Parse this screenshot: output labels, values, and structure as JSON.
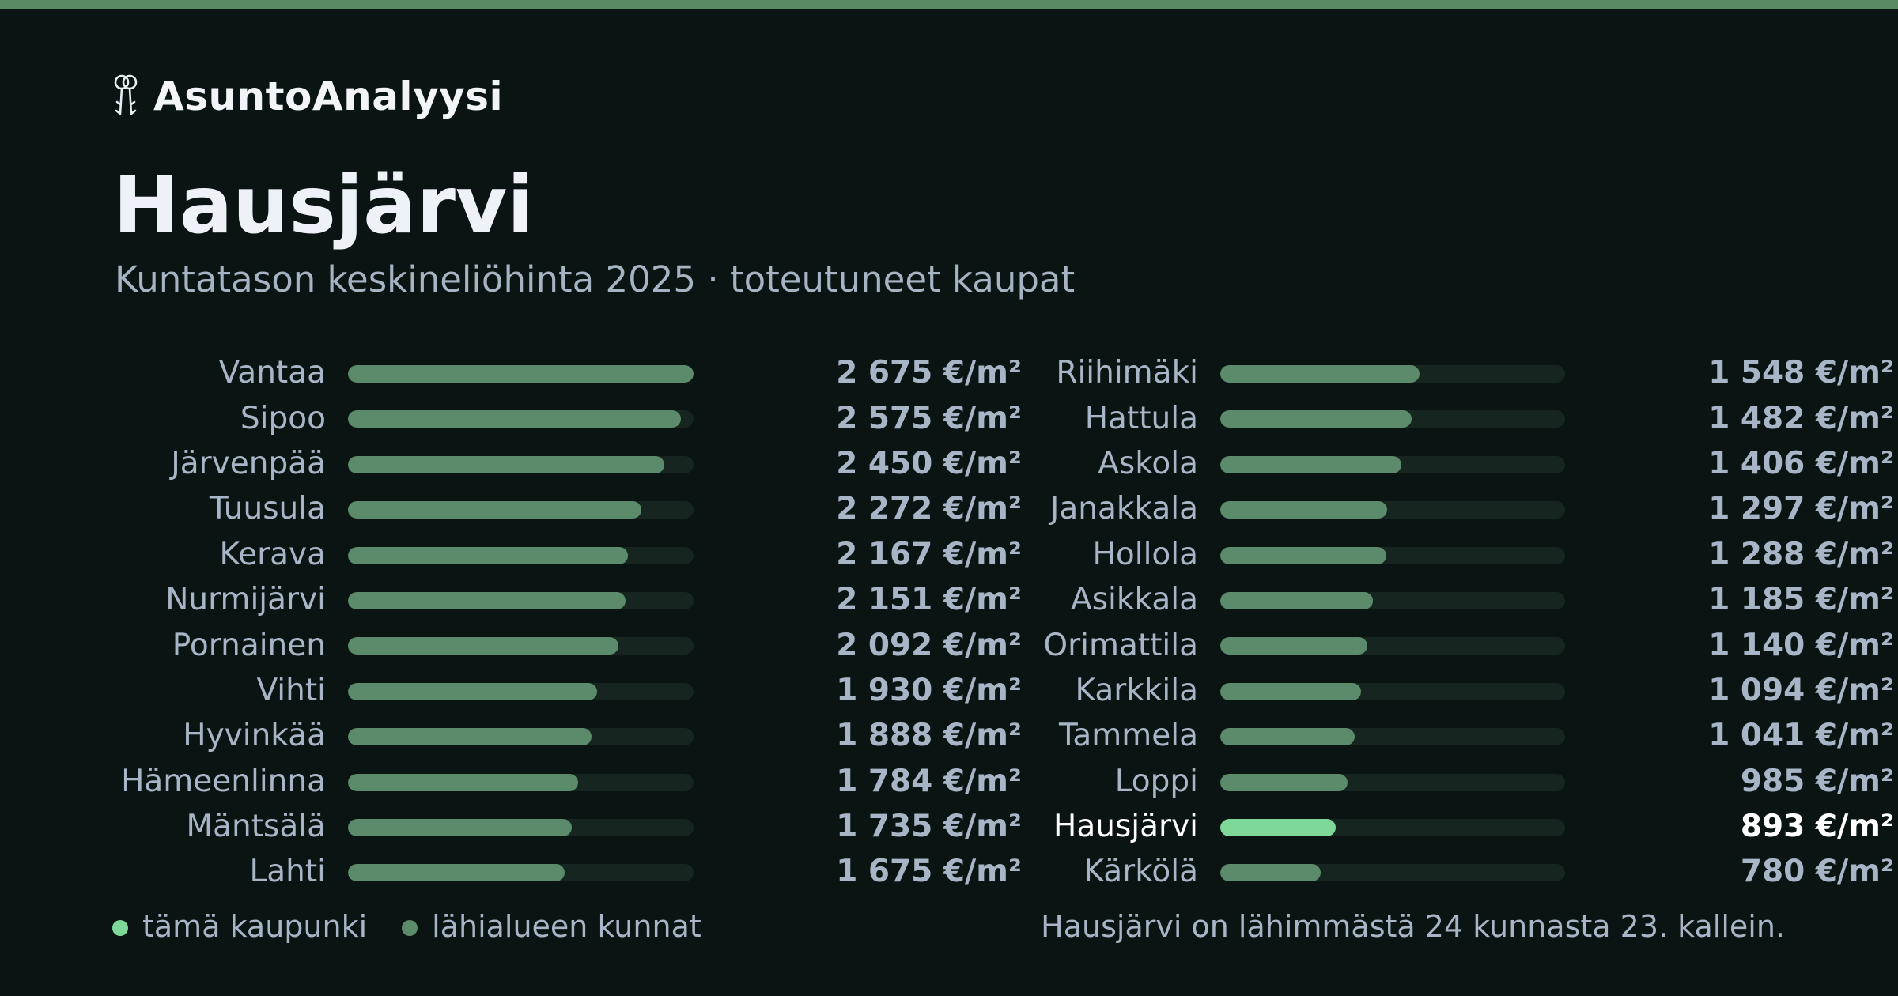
{
  "brand": {
    "name": "AsuntoAnalyysi",
    "logo_icon": "keys-icon"
  },
  "colors": {
    "accent_bar": "#5a8a63",
    "bar": "#5b8b6b",
    "highlight_bar": "#7dd89a",
    "legend_this": "#7dd89a",
    "legend_nearby": "#5b8b6b"
  },
  "chart_data": {
    "type": "bar",
    "orientation": "horizontal",
    "title": "Hausjärvi",
    "subtitle": "Kuntatason keskineliöhinta 2025 · toteutuneet kaupat",
    "unit": "€/m²",
    "xlim": [
      0,
      2675
    ],
    "highlight": "Hausjärvi",
    "categories": [
      "Vantaa",
      "Sipoo",
      "Järvenpää",
      "Tuusula",
      "Kerava",
      "Nurmijärvi",
      "Pornainen",
      "Vihti",
      "Hyvinkää",
      "Hämeenlinna",
      "Mäntsälä",
      "Lahti",
      "Riihimäki",
      "Hattula",
      "Askola",
      "Janakkala",
      "Hollola",
      "Asikkala",
      "Orimattila",
      "Karkkila",
      "Tammela",
      "Loppi",
      "Hausjärvi",
      "Kärkölä"
    ],
    "values": [
      2675,
      2575,
      2450,
      2272,
      2167,
      2151,
      2092,
      1930,
      1888,
      1784,
      1735,
      1675,
      1548,
      1482,
      1406,
      1297,
      1288,
      1185,
      1140,
      1094,
      1041,
      985,
      893,
      780
    ],
    "value_labels": [
      "2 675 €/m²",
      "2 575 €/m²",
      "2 450 €/m²",
      "2 272 €/m²",
      "2 167 €/m²",
      "2 151 €/m²",
      "2 092 €/m²",
      "1 930 €/m²",
      "1 888 €/m²",
      "1 784 €/m²",
      "1 735 €/m²",
      "1 675 €/m²",
      "1 548 €/m²",
      "1 482 €/m²",
      "1 406 €/m²",
      "1 297 €/m²",
      "1 288 €/m²",
      "1 185 €/m²",
      "1 140 €/m²",
      "1 094 €/m²",
      "1 041 €/m²",
      "985 €/m²",
      "893 €/m²",
      "780 €/m²"
    ],
    "legend": [
      {
        "label": "tämä kaupunki",
        "color": "#7dd89a"
      },
      {
        "label": "lähialueen kunnat",
        "color": "#5b8b6b"
      }
    ],
    "legend_position": "bottom-left",
    "footnote": "Hausjärvi on lähimmästä 24 kunnasta 23. kallein."
  }
}
